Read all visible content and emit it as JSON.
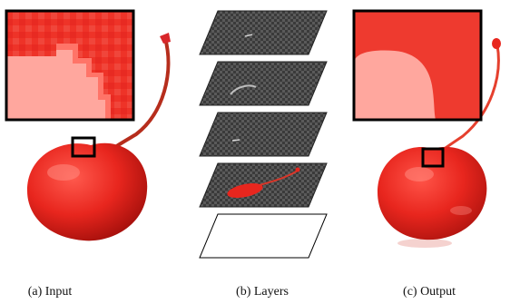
{
  "figure": {
    "captions": {
      "input": "(a) Input",
      "layers": "(b) Layers",
      "output": "(c) Output"
    },
    "layer_count": 5,
    "colors": {
      "cherry_red": "#e8261e",
      "highlight": "#ff8a80",
      "stem": "#c7301e",
      "checker_dark": "#3a3a3a",
      "checker_light": "#5a5a5a",
      "frame": "#000000"
    }
  }
}
